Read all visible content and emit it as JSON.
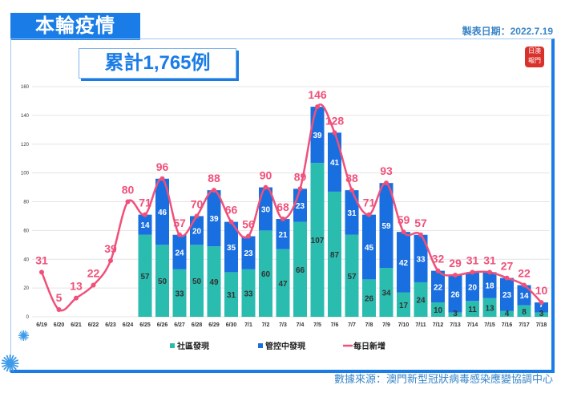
{
  "header": {
    "title": "本輪疫情",
    "date_label": "製表日期：2022.7.19",
    "total": "累計1,765例",
    "source": "數據來源：澳門新型冠狀病毒感染應變協調中心",
    "logo": "澳門日報"
  },
  "colors": {
    "community": "#2bbcb0",
    "controlled": "#1a6fe0",
    "daily": "#f0507a",
    "accent": "#1a7ce6"
  },
  "chart_data": {
    "type": "bar",
    "stacked": true,
    "categories": [
      "6/19",
      "6/20",
      "6/21",
      "6/22",
      "6/23",
      "6/24",
      "6/25",
      "6/26",
      "6/27",
      "6/28",
      "6/29",
      "6/30",
      "7/1",
      "7/2",
      "7/3",
      "7/4",
      "7/5",
      "7/6",
      "7/7",
      "7/8",
      "7/9",
      "7/10",
      "7/11",
      "7/12",
      "7/13",
      "7/14",
      "7/15",
      "7/16",
      "7/17",
      "7/18"
    ],
    "series": [
      {
        "name": "社區發現",
        "type": "bar",
        "values": [
          null,
          null,
          null,
          null,
          null,
          null,
          57,
          50,
          33,
          50,
          49,
          31,
          33,
          60,
          47,
          66,
          107,
          87,
          57,
          26,
          34,
          17,
          24,
          10,
          3,
          11,
          13,
          4,
          8,
          3
        ]
      },
      {
        "name": "管控中發現",
        "type": "bar",
        "values": [
          null,
          null,
          null,
          null,
          null,
          null,
          14,
          46,
          24,
          20,
          39,
          35,
          23,
          30,
          21,
          23,
          39,
          41,
          31,
          45,
          59,
          42,
          33,
          22,
          26,
          20,
          18,
          23,
          14,
          7
        ]
      },
      {
        "name": "每日新增",
        "type": "line",
        "values": [
          31,
          5,
          13,
          22,
          39,
          80,
          71,
          96,
          57,
          70,
          88,
          66,
          56,
          90,
          68,
          89,
          146,
          128,
          88,
          71,
          93,
          59,
          57,
          32,
          29,
          31,
          31,
          27,
          22,
          10
        ]
      }
    ],
    "yticks": [
      0,
      20,
      40,
      60,
      80,
      100,
      120,
      140,
      160
    ],
    "ylim": [
      0,
      160
    ],
    "grid": true,
    "legend": "bottom"
  }
}
